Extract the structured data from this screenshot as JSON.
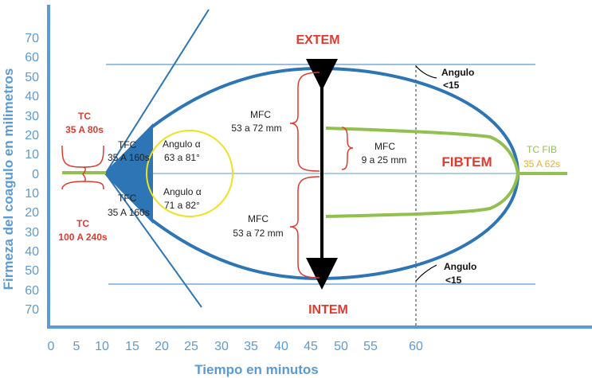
{
  "axes": {
    "x_title": "Tiempo en minutos",
    "y_title": "Firmeza del coagulo en milimetros",
    "x_ticks": [
      "0",
      "5",
      "10",
      "15",
      "20",
      "25",
      "30",
      "35",
      "40",
      "45",
      "50",
      "55",
      "60"
    ],
    "y_ticks": [
      "70",
      "60",
      "50",
      "40",
      "30",
      "20",
      "10",
      "0",
      "10",
      "20",
      "30",
      "40",
      "50",
      "60",
      "70"
    ]
  },
  "labels": {
    "extem": "EXTEM",
    "intem": "INTEM",
    "fibtem": "FIBTEM",
    "tc_top": "TC",
    "tc_top_range": "35 A 80s",
    "tc_bottom": "TC",
    "tc_bottom_range": "100 A 240s",
    "tfc_top": "TFC",
    "tfc_top_range": "35 A 160s",
    "tfc_bottom": "TFC",
    "tfc_bottom_range": "35 A 160s",
    "angle_top": "Angulo α",
    "angle_top_range": "63 a 81°",
    "angle_bottom": "Angulo α",
    "angle_bottom_range": "71 a 82°",
    "mfc_top": "MFC",
    "mfc_top_range": "53 a 72 mm",
    "mfc_bottom": "MFC",
    "mfc_bottom_range": "53 a 72 mm",
    "mfc_fib": "MFC",
    "mfc_fib_range": "9 a 25 mm",
    "tc_fib": "TC FIB",
    "tc_fib_range": "35 A 62s",
    "angulo_top_right": "Angulo",
    "angulo_top_right_value": "<15",
    "angulo_bottom_right": "Angulo",
    "angulo_bottom_right_value": "<15"
  },
  "colors": {
    "blue": "#2e75b6",
    "light_blue": "#5b9bd5",
    "red": "#e03a2f",
    "green": "#92c050",
    "yellow": "#f0e020",
    "black": "#000000"
  }
}
